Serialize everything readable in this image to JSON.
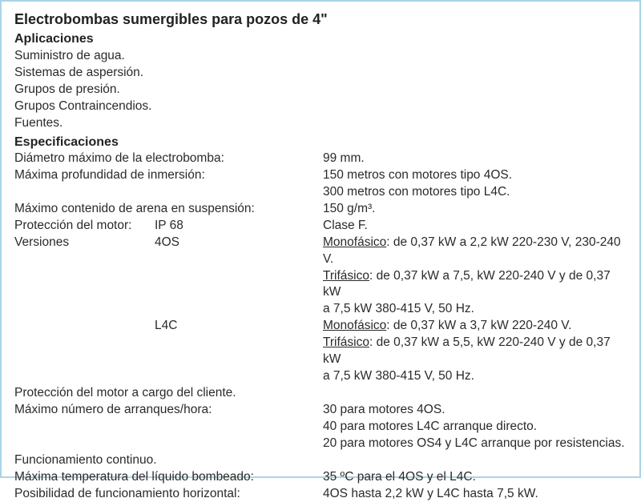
{
  "title": "Electrobombas sumergibles para pozos de 4\"",
  "sections": {
    "apps_head": "Aplicaciones",
    "apps": [
      "Suministro de agua.",
      "Sistemas de aspersión.",
      "Grupos de presión.",
      "Grupos Contraincendios.",
      "Fuentes."
    ],
    "specs_head": "Especificaciones"
  },
  "specs": {
    "diam_label": "Diámetro máximo de la electrobomba:",
    "diam_value": "99 mm.",
    "depth_label": "Máxima profundidad de inmersión:",
    "depth_v1": "150 metros con motores tipo 4OS.",
    "depth_v2": "300 metros con motores tipo L4C.",
    "sand_label": "Máximo contenido de arena en suspensión:",
    "sand_value": "150 g/m³.",
    "prot_label": "Protección del motor:",
    "prot_sub": "IP 68",
    "prot_value": "Clase F.",
    "ver_label": "Versiones",
    "ver_4os": "4OS",
    "ver_l4c": "L4C",
    "mono": "Monofásico",
    "tri": "Trifásico",
    "v4os_mono": ": de 0,37 kW a 2,2 kW 220-230 V, 230-240 V.",
    "v4os_tri1": ": de 0,37 kW a 7,5, kW 220-240 V  y de 0,37 kW",
    "v4os_tri2": "a 7,5  kW 380-415 V, 50 Hz.",
    "vl4c_mono": ": de 0,37 kW a 3,7 kW 220-240 V.",
    "vl4c_tri1": ": de 0,37 kW a 5,5, kW 220-240 V  y de 0,37 kW",
    "vl4c_tri2": "a 7,5 kW  380-415 V, 50 Hz.",
    "prot_client": "Protección del motor a cargo del cliente.",
    "starts_label": "Máximo número de arranques/hora:",
    "starts_1": "30 para motores 4OS.",
    "starts_2": "40 para motores L4C arranque directo.",
    "starts_3": "20 para motores OS4 y L4C arranque por resistencias.",
    "cont": "Funcionamiento continuo.",
    "temp_label": "Máxima temperatura del líquido bombeado:",
    "temp_value": "35 ºC para el 4OS y el L4C.",
    "horiz_label": "Posibilidad de funcionamiento horizontal:",
    "horiz_value": "4OS hasta 2,2 kW y L4C hasta 7,5 kW."
  },
  "colors": {
    "border": "#a8d4e8",
    "text": "#2a2a2a"
  }
}
